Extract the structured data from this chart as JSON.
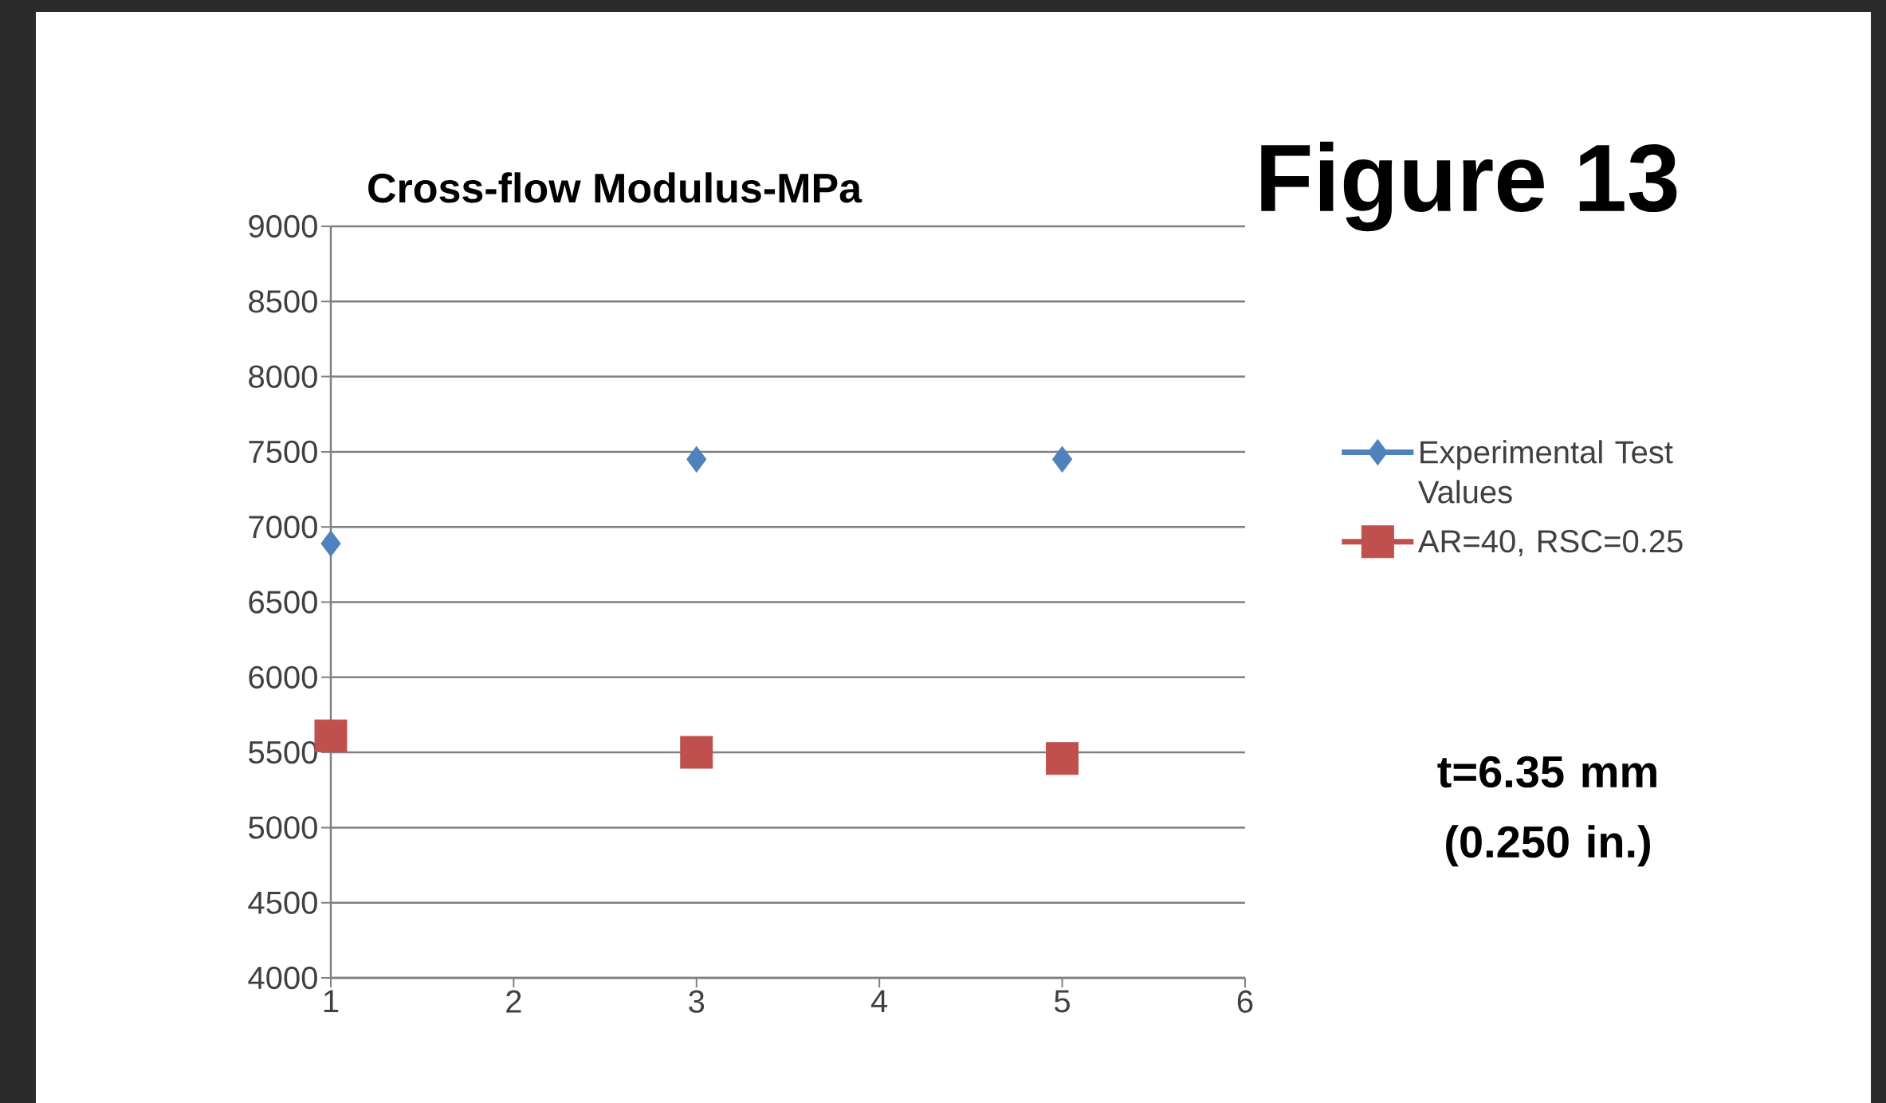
{
  "chart_data": {
    "type": "scatter",
    "title": "Cross-flow Modulus-MPa",
    "x": [
      1,
      3,
      5
    ],
    "series": [
      {
        "name": "Experimental Test Values",
        "color": "#4f81bd",
        "marker": "diamond",
        "values": [
          6890,
          7450,
          7450
        ]
      },
      {
        "name": "AR=40, RSC=0.25",
        "color": "#c0504d",
        "marker": "square",
        "values": [
          5610,
          5500,
          5460
        ]
      }
    ],
    "xlim": [
      1,
      6
    ],
    "xticks": [
      1,
      2,
      3,
      4,
      5,
      6
    ],
    "ylim": [
      4000,
      9000
    ],
    "yticks": [
      4000,
      4500,
      5000,
      5500,
      6000,
      6500,
      7000,
      7500,
      8000,
      8500,
      9000
    ],
    "grid": "y",
    "legend": "right",
    "annotations": [
      "Figure 13",
      "t=6.35 mm (0.250 in.)"
    ]
  }
}
